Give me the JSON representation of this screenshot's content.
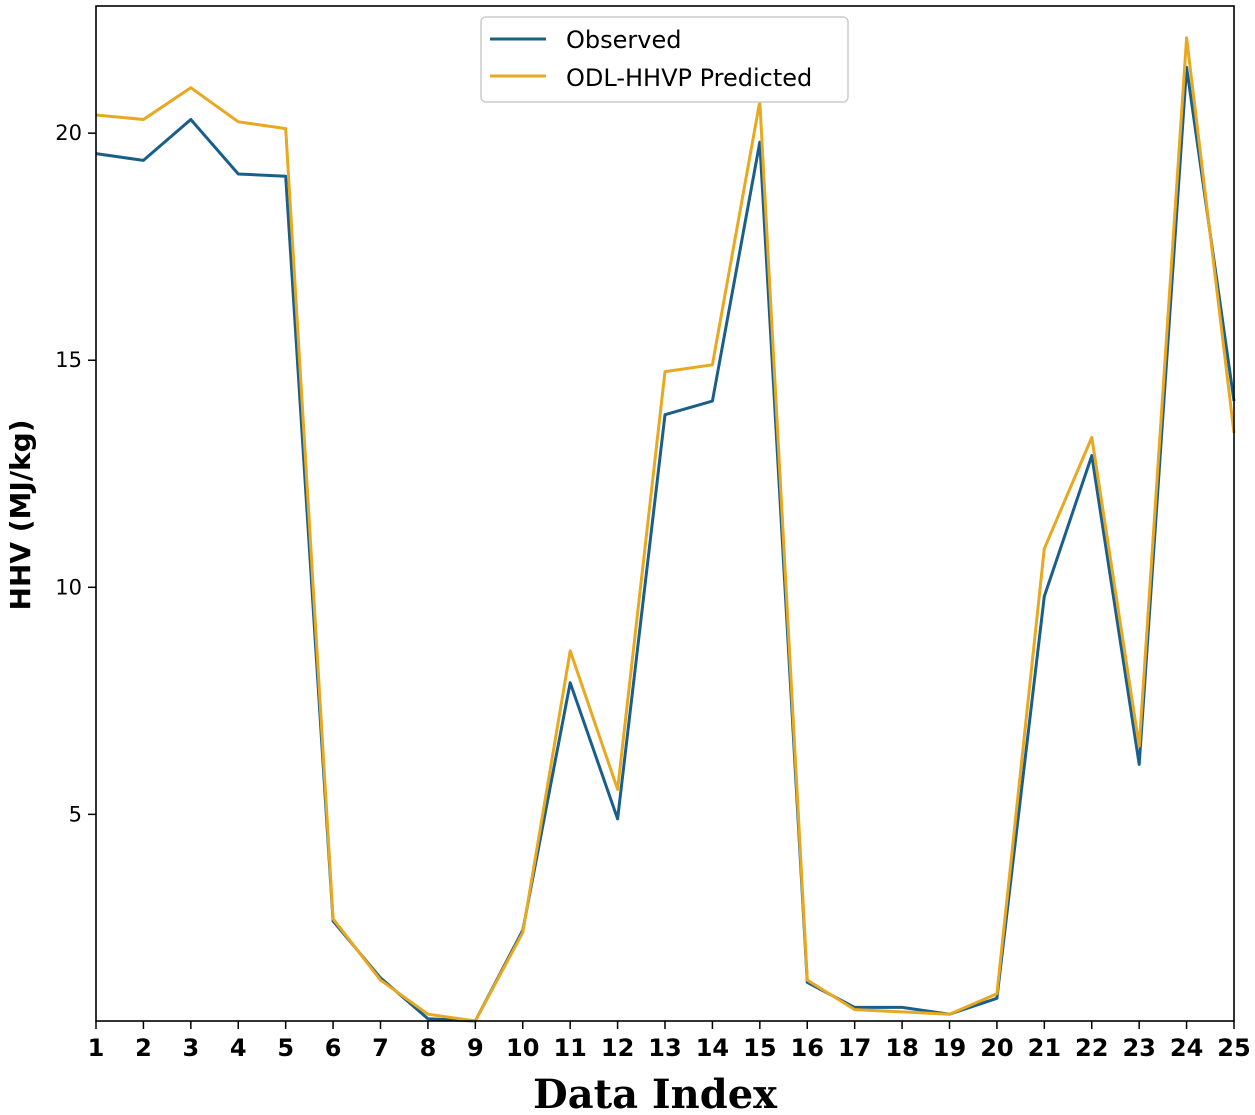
{
  "chart_data": {
    "type": "line",
    "title": "",
    "xlabel": "Data Index",
    "ylabel": "HHV (MJ/kg)",
    "x": [
      1,
      2,
      3,
      4,
      5,
      6,
      7,
      8,
      9,
      10,
      11,
      12,
      13,
      14,
      15,
      16,
      17,
      18,
      19,
      20,
      21,
      22,
      23,
      24,
      25
    ],
    "xlim": [
      1,
      25
    ],
    "ylim": [
      0.45,
      22.8
    ],
    "yticks": [
      5,
      10,
      15,
      20
    ],
    "grid": false,
    "legend_position": "top-center",
    "series": [
      {
        "name": "Observed",
        "color": "#1a5f8a",
        "values": [
          19.55,
          19.4,
          20.3,
          19.1,
          19.05,
          2.65,
          1.4,
          0.5,
          0.45,
          2.45,
          7.9,
          4.9,
          13.8,
          14.1,
          19.8,
          1.3,
          0.75,
          0.75,
          0.6,
          0.95,
          9.8,
          12.9,
          6.1,
          21.45,
          14.1
        ]
      },
      {
        "name": "ODL-HHVP Predicted",
        "color": "#e8a820",
        "values": [
          20.4,
          20.3,
          21.0,
          20.25,
          20.1,
          2.7,
          1.35,
          0.6,
          0.45,
          2.4,
          8.6,
          5.55,
          14.75,
          14.9,
          20.7,
          1.35,
          0.7,
          0.65,
          0.6,
          1.05,
          10.85,
          13.3,
          6.5,
          22.1,
          13.4
        ]
      }
    ]
  }
}
